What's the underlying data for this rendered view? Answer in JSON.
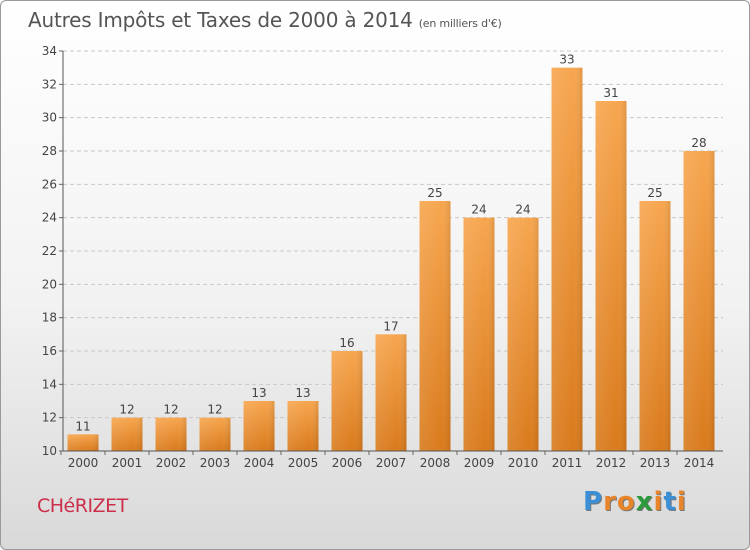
{
  "title": "Autres Impôts et Taxes de 2000 à 2014",
  "subtitle": "(en milliers d'€)",
  "commune": "CHéRIZET",
  "logo": {
    "letters": [
      "P",
      "r",
      "o",
      "x",
      "i",
      "t",
      "i"
    ],
    "colors": [
      "#3a8fd6",
      "#e8842a",
      "#e8842a",
      "#2a9a3a",
      "#e8842a",
      "#3a8fd6",
      "#e8842a"
    ]
  },
  "chart_data": {
    "type": "bar",
    "categories": [
      "2000",
      "2001",
      "2002",
      "2003",
      "2004",
      "2005",
      "2006",
      "2007",
      "2008",
      "2009",
      "2010",
      "2011",
      "2012",
      "2013",
      "2014"
    ],
    "values": [
      11,
      12,
      12,
      12,
      13,
      13,
      16,
      17,
      25,
      24,
      24,
      33,
      31,
      25,
      28
    ],
    "data_labels": [
      "11",
      "12",
      "12",
      "12",
      "13",
      "13",
      "16",
      "17",
      "25",
      "24",
      "24",
      "33",
      "31",
      "25",
      "28"
    ],
    "ylim": [
      10,
      34
    ],
    "yticks": [
      10,
      12,
      14,
      16,
      18,
      20,
      22,
      24,
      26,
      28,
      30,
      32,
      34
    ],
    "ytick_labels": [
      "10",
      "12",
      "14",
      "16",
      "18",
      "20",
      "22",
      "24",
      "26",
      "28",
      "30",
      "32",
      "34"
    ],
    "grid": true,
    "bar_color_top": "#f7a64f",
    "bar_color_bottom": "#d97a1c"
  }
}
